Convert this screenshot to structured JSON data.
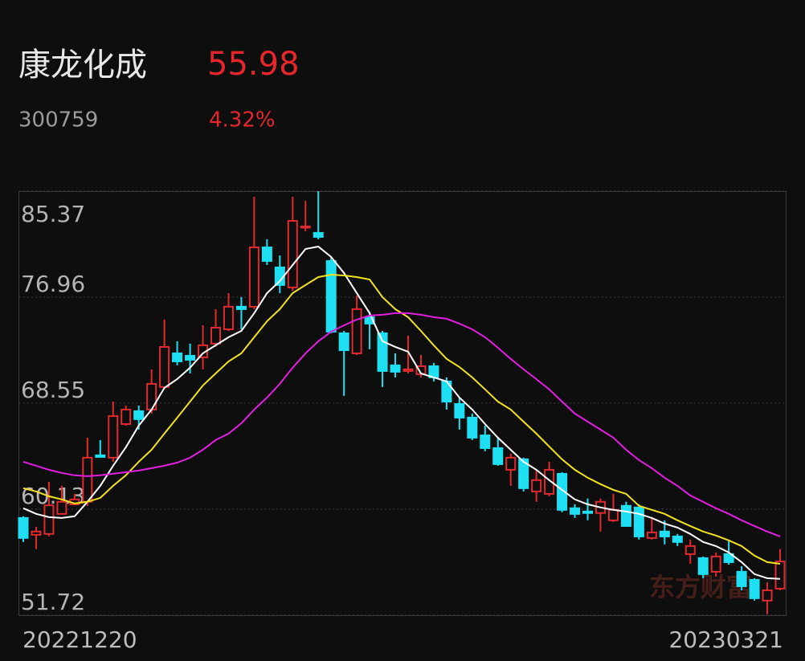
{
  "header": {
    "name": "康龙化成",
    "price": 55.98,
    "code": "300759",
    "change": "4.32%"
  },
  "watermark": "东方财富",
  "chart_data": {
    "type": "candlestick",
    "categories": [
      "20221220",
      null,
      null,
      null,
      null,
      null,
      null,
      null,
      null,
      null,
      null,
      null,
      null,
      null,
      null,
      null,
      null,
      null,
      null,
      null,
      null,
      null,
      null,
      null,
      null,
      null,
      null,
      null,
      null,
      null,
      null,
      null,
      null,
      null,
      null,
      null,
      null,
      null,
      null,
      null,
      null,
      null,
      null,
      null,
      null,
      null,
      null,
      null,
      null,
      null,
      null,
      null,
      null,
      null,
      null,
      null,
      null,
      null,
      null,
      "20230321"
    ],
    "open": [
      59.44,
      58.1,
      58.17,
      59.76,
      60.52,
      60.72,
      64.41,
      64.22,
      66.89,
      67.91,
      68.04,
      69.83,
      72.5,
      72.31,
      72.18,
      73.27,
      74.41,
      76.2,
      76.2,
      80.91,
      79.32,
      77.73,
      82.5,
      82.06,
      79.83,
      74.09,
      72.5,
      75.37,
      74.09,
      71.55,
      71.1,
      70.85,
      71.48,
      70.27,
      68.48,
      67.4,
      65.99,
      64.98,
      63.26,
      64.09,
      61.54,
      61.35,
      62.94,
      60.21,
      59.95,
      59.83,
      59.25,
      60.4,
      60.27,
      57.85,
      58.36,
      57.97,
      56.57,
      56.25,
      55.17,
      56.57,
      55.17,
      54.53,
      52.88,
      53.83
    ],
    "high": [
      59.57,
      58.74,
      62.31,
      61.99,
      61.35,
      65.81,
      65.62,
      68.67,
      68.36,
      68.36,
      71.23,
      75.18,
      73.46,
      73.27,
      74.73,
      76.01,
      77.28,
      76.96,
      84.92,
      81.55,
      80.27,
      84.92,
      84.61,
      85.37,
      80.15,
      74.28,
      77.09,
      75.81,
      74.28,
      72.5,
      73.9,
      72.37,
      71.74,
      70.59,
      68.99,
      67.72,
      66.76,
      65.81,
      64.54,
      64.22,
      63.26,
      63.9,
      63.07,
      60.53,
      60.98,
      60.98,
      61.35,
      60.72,
      60.53,
      59.44,
      59.25,
      58.17,
      57.72,
      56.38,
      56.7,
      57.72,
      55.61,
      54.66,
      54.34,
      56.97
    ],
    "low": [
      57.53,
      56.97,
      57.97,
      59.76,
      60.44,
      60.4,
      64.22,
      63.9,
      66.76,
      66.45,
      67.72,
      69.64,
      71.55,
      70.91,
      71.23,
      73.01,
      74.28,
      74.41,
      76.01,
      79.51,
      77.28,
      77.47,
      82.18,
      81.55,
      74.09,
      69.13,
      72.37,
      72.82,
      69.83,
      70.59,
      70.91,
      70.59,
      70.27,
      68.04,
      66.45,
      65.62,
      64.73,
      63.58,
      61.99,
      61.54,
      60.72,
      61.16,
      59.89,
      59.44,
      59.25,
      58.36,
      59.12,
      58.74,
      57.72,
      57.72,
      57.34,
      57.21,
      55.8,
      54.66,
      54.79,
      55.74,
      53.7,
      52.88,
      51.8,
      53.7
    ],
    "close": [
      57.85,
      58.36,
      60.44,
      60.72,
      60.91,
      64.22,
      64.28,
      67.52,
      68.04,
      67.28,
      70.08,
      73.01,
      71.86,
      71.99,
      73.14,
      74.54,
      76.2,
      76.01,
      80.91,
      79.83,
      77.92,
      83.01,
      82.57,
      81.74,
      74.22,
      72.75,
      76.01,
      74.86,
      71.1,
      71.04,
      71.23,
      71.48,
      70.59,
      68.67,
      67.4,
      65.81,
      64.98,
      63.71,
      64.22,
      61.8,
      62.44,
      63.26,
      60.08,
      59.76,
      59.83,
      60.72,
      60.08,
      58.8,
      57.97,
      58.29,
      57.97,
      57.53,
      57.21,
      54.98,
      56.38,
      55.93,
      54.02,
      53.07,
      53.7,
      55.98
    ],
    "up_color": "#e02a2f",
    "down_color": "#1fe0f2",
    "series": [
      {
        "color": "#ffffff",
        "values": [
          60.21,
          59.76,
          59.5,
          59.44,
          59.57,
          60.72,
          61.99,
          63.58,
          65.05,
          66.76,
          68.04,
          69.76,
          70.46,
          71.36,
          72.5,
          73.14,
          73.78,
          74.28,
          75.69,
          77.28,
          78.23,
          79.51,
          80.78,
          80.97,
          80.15,
          78.87,
          77.28,
          75.69,
          73.46,
          73.01,
          72.63,
          70.91,
          70.59,
          70.27,
          68.99,
          68.04,
          66.89,
          65.81,
          64.85,
          63.9,
          63.26,
          62.44,
          61.67,
          60.91,
          60.52,
          60.27,
          60.08,
          59.95,
          59.76,
          59.44,
          58.99,
          58.67,
          58.17,
          57.53,
          57.21,
          56.7,
          55.93,
          54.98,
          54.66,
          54.6
        ]
      },
      {
        "color": "#f2e21c",
        "values": [
          61.8,
          61.54,
          61.16,
          60.91,
          60.59,
          60.72,
          61.03,
          61.99,
          62.82,
          63.9,
          64.85,
          66.13,
          67.4,
          68.67,
          69.95,
          70.91,
          71.86,
          72.5,
          73.78,
          75.05,
          76.01,
          77.28,
          77.92,
          78.55,
          78.74,
          78.68,
          78.55,
          78.36,
          76.96,
          76.01,
          75.37,
          74.28,
          73.14,
          72.06,
          71.42,
          70.59,
          69.64,
          68.67,
          68.04,
          67.08,
          66.13,
          65.11,
          64.09,
          63.26,
          62.63,
          62.12,
          61.67,
          61.35,
          60.4,
          60.08,
          59.76,
          59.25,
          58.8,
          58.36,
          58.04,
          57.66,
          57.21,
          56.45,
          55.93,
          55.8
        ]
      },
      {
        "color": "#e21fe0",
        "values": [
          63.9,
          63.58,
          63.26,
          63.01,
          62.82,
          62.75,
          62.82,
          62.94,
          63.07,
          63.2,
          63.39,
          63.58,
          63.83,
          64.22,
          64.85,
          65.62,
          66.13,
          66.95,
          68.04,
          68.99,
          70.08,
          71.36,
          72.5,
          73.46,
          74.22,
          74.73,
          75.18,
          75.5,
          75.56,
          75.69,
          75.69,
          75.56,
          75.37,
          75.24,
          74.86,
          74.41,
          73.78,
          72.95,
          72.06,
          71.23,
          70.46,
          69.64,
          68.67,
          67.72,
          67.08,
          66.45,
          65.81,
          64.85,
          64.03,
          63.39,
          62.63,
          61.99,
          61.22,
          60.72,
          60.21,
          59.76,
          59.25,
          58.8,
          58.36,
          57.97
        ]
      }
    ],
    "ylim": [
      51.72,
      85.37
    ],
    "yticks": [
      85.37,
      76.96,
      68.55,
      60.13,
      51.72
    ],
    "grid": true
  }
}
